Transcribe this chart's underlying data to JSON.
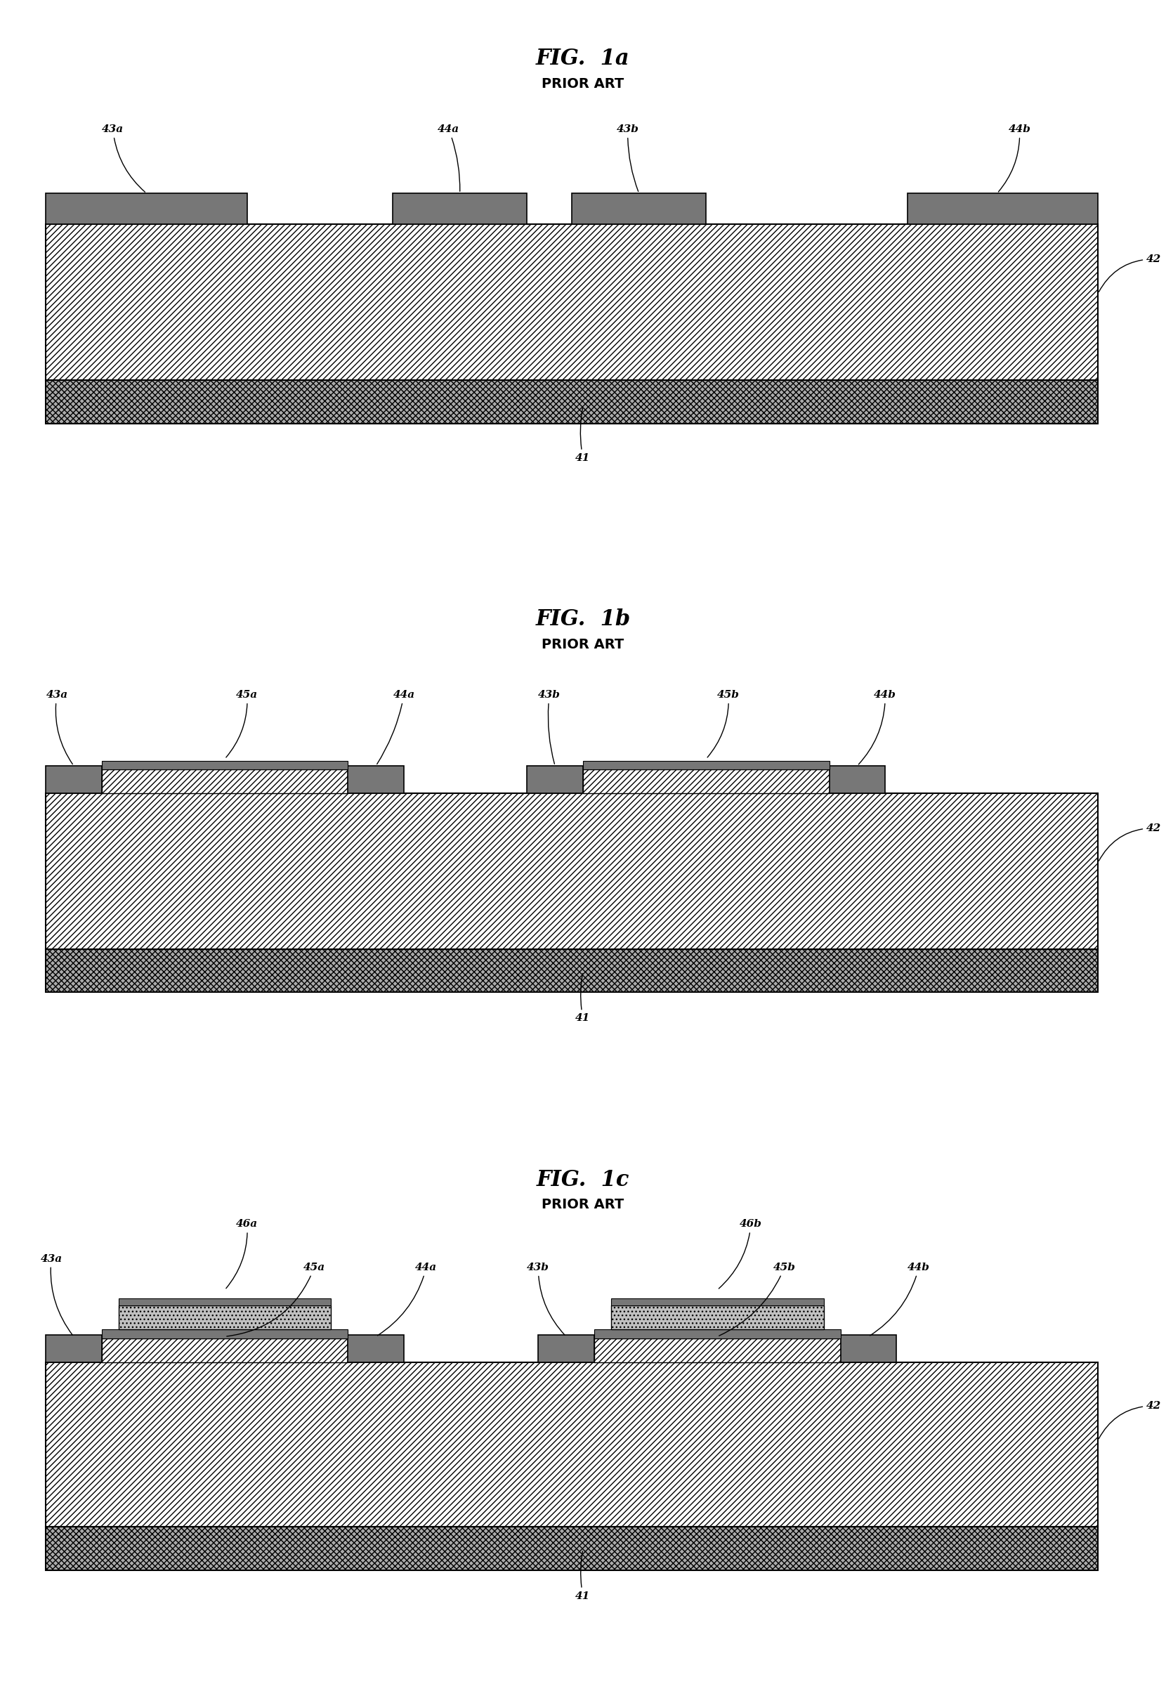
{
  "fig_titles": [
    "FIG.  1a",
    "FIG.  1b",
    "FIG.  1c"
  ],
  "subtitle": "PRIOR ART",
  "bg_color": "#ffffff",
  "pad_color": "#777777",
  "bottom_layer_color": "#888888",
  "dielectric_color": "#ffffff",
  "top_plate_color": "#aaaaaa"
}
